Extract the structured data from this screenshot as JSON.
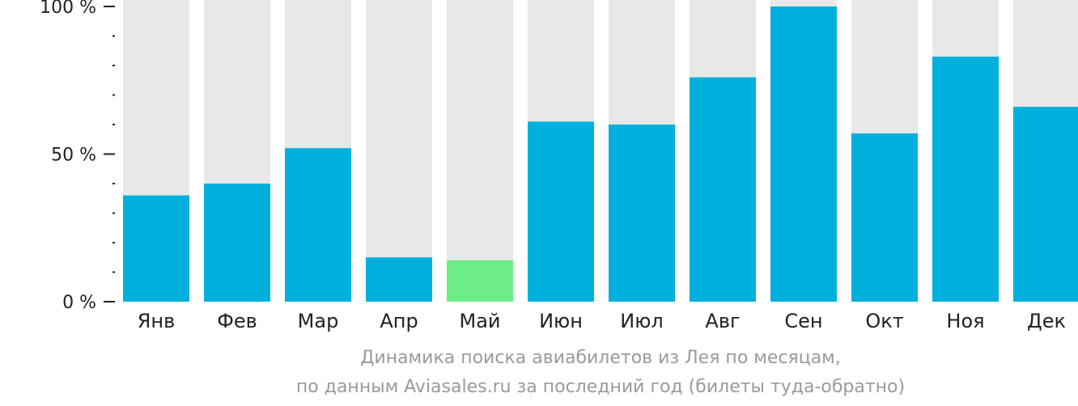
{
  "chart_data": {
    "type": "bar",
    "categories": [
      "Янв",
      "Фев",
      "Мар",
      "Апр",
      "Май",
      "Июн",
      "Июл",
      "Авг",
      "Сен",
      "Окт",
      "Ноя",
      "Дек"
    ],
    "values": [
      36,
      40,
      52,
      15,
      14,
      61,
      60,
      76,
      100,
      57,
      83,
      66
    ],
    "ylim": [
      0,
      100
    ],
    "y_ticks": [
      {
        "value": 0,
        "label": "0 %"
      },
      {
        "value": 50,
        "label": "50 %"
      },
      {
        "value": 100,
        "label": "100 %"
      }
    ],
    "y_minor_tick_step": 10,
    "highlight_index": 4,
    "colors": {
      "bar": "#00b0dc",
      "highlight": "#6ced86",
      "background_bar": "#e8e8e8",
      "axis": "#222222",
      "caption": "#9a9a9a"
    },
    "caption": {
      "line1": "Динамика поиска авиабилетов из Лея по месяцам,",
      "line2": "по данным Aviasales.ru за последний год (билеты туда-обратно)"
    },
    "grid": false,
    "legend": "none"
  }
}
